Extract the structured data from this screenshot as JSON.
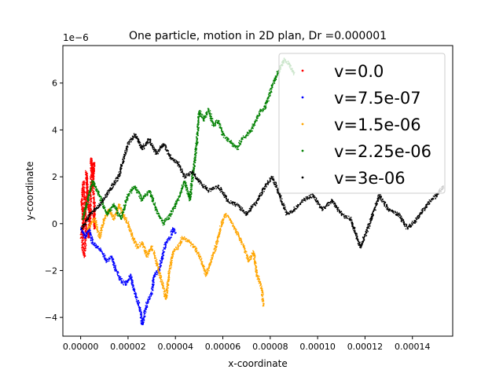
{
  "chart_data": {
    "type": "scatter",
    "title": "One particle, motion in 2D plan, Dr =0.000001",
    "xlabel": "x-coordinate",
    "ylabel": "y-coordinate",
    "y_offset_label": "1e−6",
    "xlim": [
      -7.5e-06,
      0.000157
    ],
    "ylim": [
      -4.8,
      7.6
    ],
    "x_ticks": [
      0,
      2e-05,
      4e-05,
      6e-05,
      8e-05,
      0.0001,
      0.00012,
      0.00014
    ],
    "x_tick_labels": [
      "0.00000",
      "0.00002",
      "0.00004",
      "0.00006",
      "0.00008",
      "0.00010",
      "0.00012",
      "0.00014"
    ],
    "y_ticks": [
      -4,
      -2,
      0,
      2,
      4,
      6
    ],
    "y_tick_labels": [
      "−4",
      "−2",
      "0",
      "2",
      "4",
      "6"
    ],
    "grid": false,
    "legend_position": "top-right",
    "series": [
      {
        "name": "v=0.0",
        "color": "#ff0000",
        "points": [
          [
            2e-07,
            -0.6
          ],
          [
            1e-06,
            0.2
          ],
          [
            5e-07,
            1.0
          ],
          [
            1.2e-06,
            1.8
          ],
          [
            1.8e-06,
            0.8
          ],
          [
            1e-06,
            -0.2
          ],
          [
            8e-07,
            -1.0
          ],
          [
            1.6e-06,
            -1.4
          ],
          [
            2.2e-06,
            -0.4
          ],
          [
            2e-06,
            0.6
          ],
          [
            2.8e-06,
            1.4
          ],
          [
            2.4e-06,
            2.2
          ],
          [
            3e-06,
            1.2
          ],
          [
            3.6e-06,
            0.4
          ],
          [
            3.4e-06,
            -0.6
          ],
          [
            4e-06,
            0.2
          ],
          [
            4.2e-06,
            1.2
          ],
          [
            4.6e-06,
            2.2
          ],
          [
            4.4e-06,
            2.8
          ],
          [
            5e-06,
            2.0
          ],
          [
            5.6e-06,
            2.6
          ],
          [
            5.2e-06,
            1.6
          ],
          [
            5.8e-06,
            0.8
          ],
          [
            6e-06,
            -0.2
          ],
          [
            5.5e-06,
            0.4
          ]
        ]
      },
      {
        "name": "v=7.5e-07",
        "color": "#0000ff",
        "points": [
          [
            2e-07,
            -0.2
          ],
          [
            2e-06,
            -0.6
          ],
          [
            3.5e-06,
            -0.2
          ],
          [
            5e-06,
            -0.8
          ],
          [
            7e-06,
            -1.0
          ],
          [
            9e-06,
            -1.2
          ],
          [
            1.1e-05,
            -1.6
          ],
          [
            1.3e-05,
            -1.4
          ],
          [
            1.5e-05,
            -2.0
          ],
          [
            1.7e-05,
            -2.4
          ],
          [
            1.9e-05,
            -2.6
          ],
          [
            2.1e-05,
            -2.2
          ],
          [
            2.3e-05,
            -3.0
          ],
          [
            2.5e-05,
            -3.6
          ],
          [
            2.6e-05,
            -4.3
          ],
          [
            2.8e-05,
            -3.4
          ],
          [
            3e-05,
            -3.0
          ],
          [
            3.1e-05,
            -2.2
          ],
          [
            3.3e-05,
            -2.0
          ],
          [
            3.45e-05,
            -1.4
          ],
          [
            3.6e-05,
            -0.8
          ],
          [
            3.8e-05,
            -0.6
          ],
          [
            3.9e-05,
            -0.2
          ],
          [
            4e-05,
            -0.4
          ]
        ]
      },
      {
        "name": "v=1.5e-06",
        "color": "#ffa500",
        "points": [
          [
            3e-06,
            -0.2
          ],
          [
            6e-06,
            0.2
          ],
          [
            8e-06,
            -0.6
          ],
          [
            1e-05,
            0.2
          ],
          [
            1.2e-05,
            0.6
          ],
          [
            1.4e-05,
            0.2
          ],
          [
            1.6e-05,
            0.8
          ],
          [
            1.8e-05,
            0.4
          ],
          [
            2e-05,
            0.0
          ],
          [
            2.2e-05,
            -0.6
          ],
          [
            2.4e-05,
            -1.0
          ],
          [
            2.6e-05,
            -0.8
          ],
          [
            2.8e-05,
            -1.4
          ],
          [
            3e-05,
            -1.0
          ],
          [
            3.2e-05,
            -1.6
          ],
          [
            3.4e-05,
            -2.4
          ],
          [
            3.6e-05,
            -3.2
          ],
          [
            3.75e-05,
            -2.0
          ],
          [
            3.9e-05,
            -1.2
          ],
          [
            4.1e-05,
            -1.0
          ],
          [
            4.3e-05,
            -0.6
          ],
          [
            4.6e-05,
            -0.8
          ],
          [
            4.8e-05,
            -1.0
          ],
          [
            5.1e-05,
            -1.6
          ],
          [
            5.3e-05,
            -2.2
          ],
          [
            5.5e-05,
            -1.6
          ],
          [
            5.7e-05,
            -1.0
          ],
          [
            5.9e-05,
            -0.2
          ],
          [
            6.1e-05,
            0.4
          ],
          [
            6.3e-05,
            0.2
          ],
          [
            6.5e-05,
            -0.2
          ],
          [
            6.7e-05,
            -0.6
          ],
          [
            6.9e-05,
            -1.0
          ],
          [
            7.1e-05,
            -1.6
          ],
          [
            7.3e-05,
            -1.2
          ],
          [
            7.45e-05,
            -2.2
          ],
          [
            7.65e-05,
            -2.8
          ],
          [
            7.7e-05,
            -3.5
          ]
        ]
      },
      {
        "name": "v=2.25e-06",
        "color": "#008000",
        "points": [
          [
            1e-06,
            0.2
          ],
          [
            3e-06,
            1.0
          ],
          [
            5e-06,
            1.8
          ],
          [
            8e-06,
            1.2
          ],
          [
            1.1e-05,
            0.4
          ],
          [
            1.4e-05,
            0.8
          ],
          [
            1.7e-05,
            0.2
          ],
          [
            2e-05,
            1.2
          ],
          [
            2.3e-05,
            1.6
          ],
          [
            2.6e-05,
            1.0
          ],
          [
            2.9e-05,
            1.4
          ],
          [
            3.2e-05,
            0.6
          ],
          [
            3.5e-05,
            0.0
          ],
          [
            3.8e-05,
            0.4
          ],
          [
            4.1e-05,
            1.0
          ],
          [
            4.4e-05,
            1.8
          ],
          [
            4.6e-05,
            1.0
          ],
          [
            4.75e-05,
            2.2
          ],
          [
            4.9e-05,
            3.4
          ],
          [
            5e-05,
            4.8
          ],
          [
            5.2e-05,
            4.4
          ],
          [
            5.4e-05,
            4.9
          ],
          [
            5.6e-05,
            4.2
          ],
          [
            5.8e-05,
            4.4
          ],
          [
            6e-05,
            3.8
          ],
          [
            6.2e-05,
            3.6
          ],
          [
            6.4e-05,
            3.4
          ],
          [
            6.6e-05,
            3.2
          ],
          [
            6.8e-05,
            3.6
          ],
          [
            7e-05,
            3.8
          ],
          [
            7.2e-05,
            4.0
          ],
          [
            7.4e-05,
            4.4
          ],
          [
            7.6e-05,
            4.8
          ],
          [
            7.8e-05,
            5.0
          ],
          [
            8e-05,
            5.6
          ],
          [
            8.2e-05,
            6.2
          ],
          [
            8.4e-05,
            6.6
          ],
          [
            8.6e-05,
            7.0
          ],
          [
            8.8e-05,
            6.8
          ],
          [
            9e-05,
            6.4
          ]
        ]
      },
      {
        "name": "v=3e-06",
        "color": "#000000",
        "points": [
          [
            5e-07,
            -0.2
          ],
          [
            4e-06,
            0.4
          ],
          [
            8e-06,
            0.8
          ],
          [
            1.2e-05,
            1.4
          ],
          [
            1.6e-05,
            2.0
          ],
          [
            2e-05,
            3.4
          ],
          [
            2.3e-05,
            3.8
          ],
          [
            2.6e-05,
            3.2
          ],
          [
            2.9e-05,
            3.6
          ],
          [
            3.2e-05,
            3.0
          ],
          [
            3.5e-05,
            3.4
          ],
          [
            3.8e-05,
            2.8
          ],
          [
            4.1e-05,
            2.6
          ],
          [
            4.4e-05,
            2.0
          ],
          [
            4.7e-05,
            2.2
          ],
          [
            5e-05,
            1.8
          ],
          [
            5.4e-05,
            1.4
          ],
          [
            5.8e-05,
            1.6
          ],
          [
            6.2e-05,
            1.0
          ],
          [
            6.6e-05,
            0.8
          ],
          [
            7e-05,
            0.4
          ],
          [
            7.4e-05,
            0.9
          ],
          [
            7.8e-05,
            1.6
          ],
          [
            8.1e-05,
            2.0
          ],
          [
            8.4e-05,
            1.2
          ],
          [
            8.7e-05,
            0.4
          ],
          [
            9e-05,
            0.6
          ],
          [
            9.4e-05,
            1.0
          ],
          [
            9.8e-05,
            1.2
          ],
          [
            0.000102,
            0.6
          ],
          [
            0.000106,
            1.0
          ],
          [
            0.00011,
            0.4
          ],
          [
            0.000114,
            0.2
          ],
          [
            0.000118,
            -1.0
          ],
          [
            0.000122,
            0.0
          ],
          [
            0.000126,
            1.2
          ],
          [
            0.00013,
            0.6
          ],
          [
            0.000134,
            0.4
          ],
          [
            0.000138,
            -0.2
          ],
          [
            0.000142,
            0.2
          ],
          [
            0.000146,
            0.8
          ],
          [
            0.00015,
            1.2
          ],
          [
            0.000153,
            1.6
          ]
        ]
      }
    ]
  }
}
